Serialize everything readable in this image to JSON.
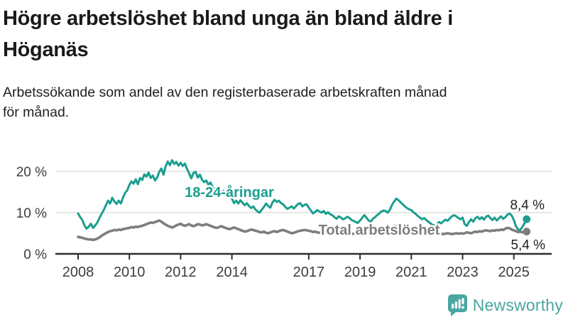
{
  "header": {
    "title_lines": [
      "Högre arbetslöshet bland unga än bland äldre i",
      "Höganäs"
    ],
    "subtitle_lines": [
      "Arbetssökande som andel av den registerbaserade arbetskraften månad",
      "för månad."
    ]
  },
  "branding": {
    "wordmark": "Newsworthy",
    "logo_icon": "bar-chart-speech-bubble",
    "brand_color": "#4aa6a1"
  },
  "colors": {
    "young_series": "#1b9e8f",
    "total_series": "#7e7e7e",
    "gridline": "#dedede",
    "axis": "#2e2e2e",
    "value_label": "#222222",
    "tick_label": "#3d3d3d"
  },
  "chart_data": {
    "type": "line",
    "x_start": "2008-01",
    "x_end": "2025-07",
    "points_per_year": 12,
    "x_tick_years": [
      2008,
      2010,
      2012,
      2014,
      2017,
      2019,
      2021,
      2023,
      2025
    ],
    "x_tick_labels": [
      "2008",
      "2010",
      "2012",
      "2014",
      "2017",
      "2019",
      "2021",
      "2023",
      "2025"
    ],
    "y_tick_labels": [
      "20 %",
      "10 %",
      "0 %"
    ],
    "y_ticks": [
      20,
      10,
      0
    ],
    "ylim": [
      0,
      24
    ],
    "grid": "horizontal",
    "legend": "inline-labels",
    "series": [
      {
        "name": "18-24-åringar",
        "color": "#1b9e8f",
        "end_label": "8,4 %",
        "end_value": 8.4,
        "values": [
          9.8,
          8.9,
          8.2,
          6.9,
          6.1,
          6.6,
          7.3,
          6.3,
          6.9,
          7.6,
          8.7,
          9.7,
          10.6,
          11.8,
          12.9,
          12.2,
          13.6,
          12.7,
          12.1,
          12.9,
          12.2,
          13.6,
          14.8,
          15.4,
          16.7,
          17.6,
          17.0,
          18.1,
          16.9,
          18.4,
          17.9,
          19.3,
          18.7,
          19.7,
          18.4,
          19.0,
          17.8,
          18.5,
          19.9,
          20.7,
          19.2,
          21.2,
          22.4,
          21.5,
          22.7,
          21.8,
          22.3,
          21.4,
          22.1,
          21.3,
          21.9,
          20.6,
          19.5,
          18.3,
          19.6,
          19.9,
          18.5,
          19.2,
          18.0,
          17.4,
          17.8,
          16.8,
          17.3,
          16.2,
          15.6,
          16.1,
          15.1,
          14.8,
          15.3,
          14.3,
          13.8,
          14.1,
          13.4,
          12.3,
          12.9,
          12.2,
          13.0,
          12.4,
          11.8,
          12.3,
          11.6,
          11.1,
          11.5,
          10.8,
          10.3,
          10.0,
          10.7,
          11.4,
          12.2,
          11.6,
          11.2,
          12.5,
          13.1,
          12.6,
          12.9,
          12.3,
          12.0,
          11.4,
          10.9,
          11.2,
          11.5,
          11.0,
          11.6,
          12.1,
          12.3,
          11.5,
          11.9,
          12.0,
          11.2,
          10.5,
          9.8,
          10.2,
          10.6,
          10.3,
          10.0,
          10.4,
          9.7,
          10.1,
          9.6,
          9.4,
          8.9,
          8.5,
          9.1,
          8.8,
          8.4,
          8.6,
          9.0,
          8.7,
          8.2,
          8.0,
          7.7,
          7.5,
          8.1,
          8.7,
          9.4,
          8.8,
          8.1,
          7.8,
          8.5,
          8.9,
          9.4,
          9.8,
          10.3,
          10.5,
          10.4,
          10.0,
          10.7,
          11.9,
          12.7,
          13.4,
          13.0,
          12.5,
          12.0,
          11.5,
          11.1,
          10.8,
          10.6,
          10.1,
          9.7,
          9.2,
          8.8,
          8.4,
          8.7,
          8.2,
          7.8,
          7.4,
          7.0,
          6.8,
          7.2,
          7.7,
          7.4,
          7.9,
          8.3,
          8.0,
          8.6,
          9.1,
          9.4,
          9.1,
          8.7,
          8.4,
          8.8,
          7.2,
          6.8,
          7.7,
          8.4,
          7.8,
          8.6,
          9.0,
          8.4,
          8.9,
          8.3,
          9.0,
          9.3,
          8.7,
          8.2,
          8.8,
          8.1,
          8.6,
          9.1,
          8.5,
          8.9,
          9.5,
          9.8,
          9.3,
          8.2,
          6.7,
          5.9,
          5.8,
          6.5,
          7.4,
          8.4
        ]
      },
      {
        "name": "Total arbetslöshet",
        "color": "#7e7e7e",
        "end_label": "5,4 %",
        "end_value": 5.4,
        "values": [
          4.1,
          4.0,
          3.9,
          3.7,
          3.6,
          3.5,
          3.5,
          3.4,
          3.5,
          3.7,
          4.0,
          4.4,
          4.7,
          5.0,
          5.3,
          5.5,
          5.6,
          5.8,
          5.7,
          5.9,
          5.8,
          6.0,
          6.1,
          6.2,
          6.3,
          6.5,
          6.4,
          6.6,
          6.5,
          6.7,
          6.8,
          7.0,
          7.2,
          7.4,
          7.6,
          7.5,
          7.7,
          7.9,
          8.1,
          7.8,
          7.4,
          7.1,
          6.8,
          6.6,
          6.4,
          6.6,
          6.9,
          7.1,
          7.3,
          7.0,
          6.8,
          7.0,
          7.2,
          6.9,
          6.7,
          6.9,
          7.2,
          7.1,
          6.9,
          7.0,
          7.2,
          7.0,
          6.8,
          6.6,
          6.4,
          6.3,
          6.5,
          6.7,
          6.5,
          6.3,
          6.1,
          6.0,
          6.2,
          6.4,
          6.2,
          6.0,
          5.8,
          5.6,
          5.4,
          5.5,
          5.7,
          5.9,
          5.8,
          5.6,
          5.5,
          5.3,
          5.2,
          5.4,
          5.1,
          5.0,
          5.2,
          5.4,
          5.5,
          5.3,
          5.5,
          5.7,
          5.8,
          5.6,
          5.4,
          5.2,
          5.0,
          5.1,
          5.3,
          5.5,
          5.6,
          5.7,
          5.8,
          5.7,
          5.6,
          5.5,
          5.3,
          5.4,
          5.2,
          5.1,
          5.3,
          5.2,
          5.4,
          5.3,
          5.2,
          5.1,
          5.0,
          4.9,
          5.1,
          5.0,
          4.8,
          4.9,
          5.0,
          4.9,
          4.8,
          4.9,
          5.0,
          5.1,
          5.2,
          5.1,
          5.3,
          5.2,
          5.4,
          5.3,
          5.5,
          5.4,
          5.6,
          5.5,
          5.7,
          5.8,
          5.9,
          6.0,
          6.2,
          6.5,
          6.8,
          6.7,
          6.6,
          6.5,
          6.4,
          6.3,
          6.2,
          6.1,
          6.0,
          5.9,
          5.8,
          5.7,
          5.6,
          5.5,
          5.4,
          5.3,
          5.2,
          5.1,
          5.0,
          5.0,
          5.1,
          5.0,
          4.9,
          4.8,
          4.9,
          5.0,
          4.9,
          4.8,
          4.9,
          5.0,
          4.9,
          5.0,
          4.9,
          5.0,
          5.2,
          5.1,
          5.0,
          5.2,
          5.4,
          5.3,
          5.5,
          5.4,
          5.6,
          5.7,
          5.6,
          5.5,
          5.7,
          5.6,
          5.8,
          5.7,
          5.9,
          5.8,
          6.1,
          6.3,
          6.2,
          5.9,
          5.7,
          5.5,
          5.3,
          5.4,
          5.2,
          5.3,
          5.4
        ]
      }
    ]
  }
}
